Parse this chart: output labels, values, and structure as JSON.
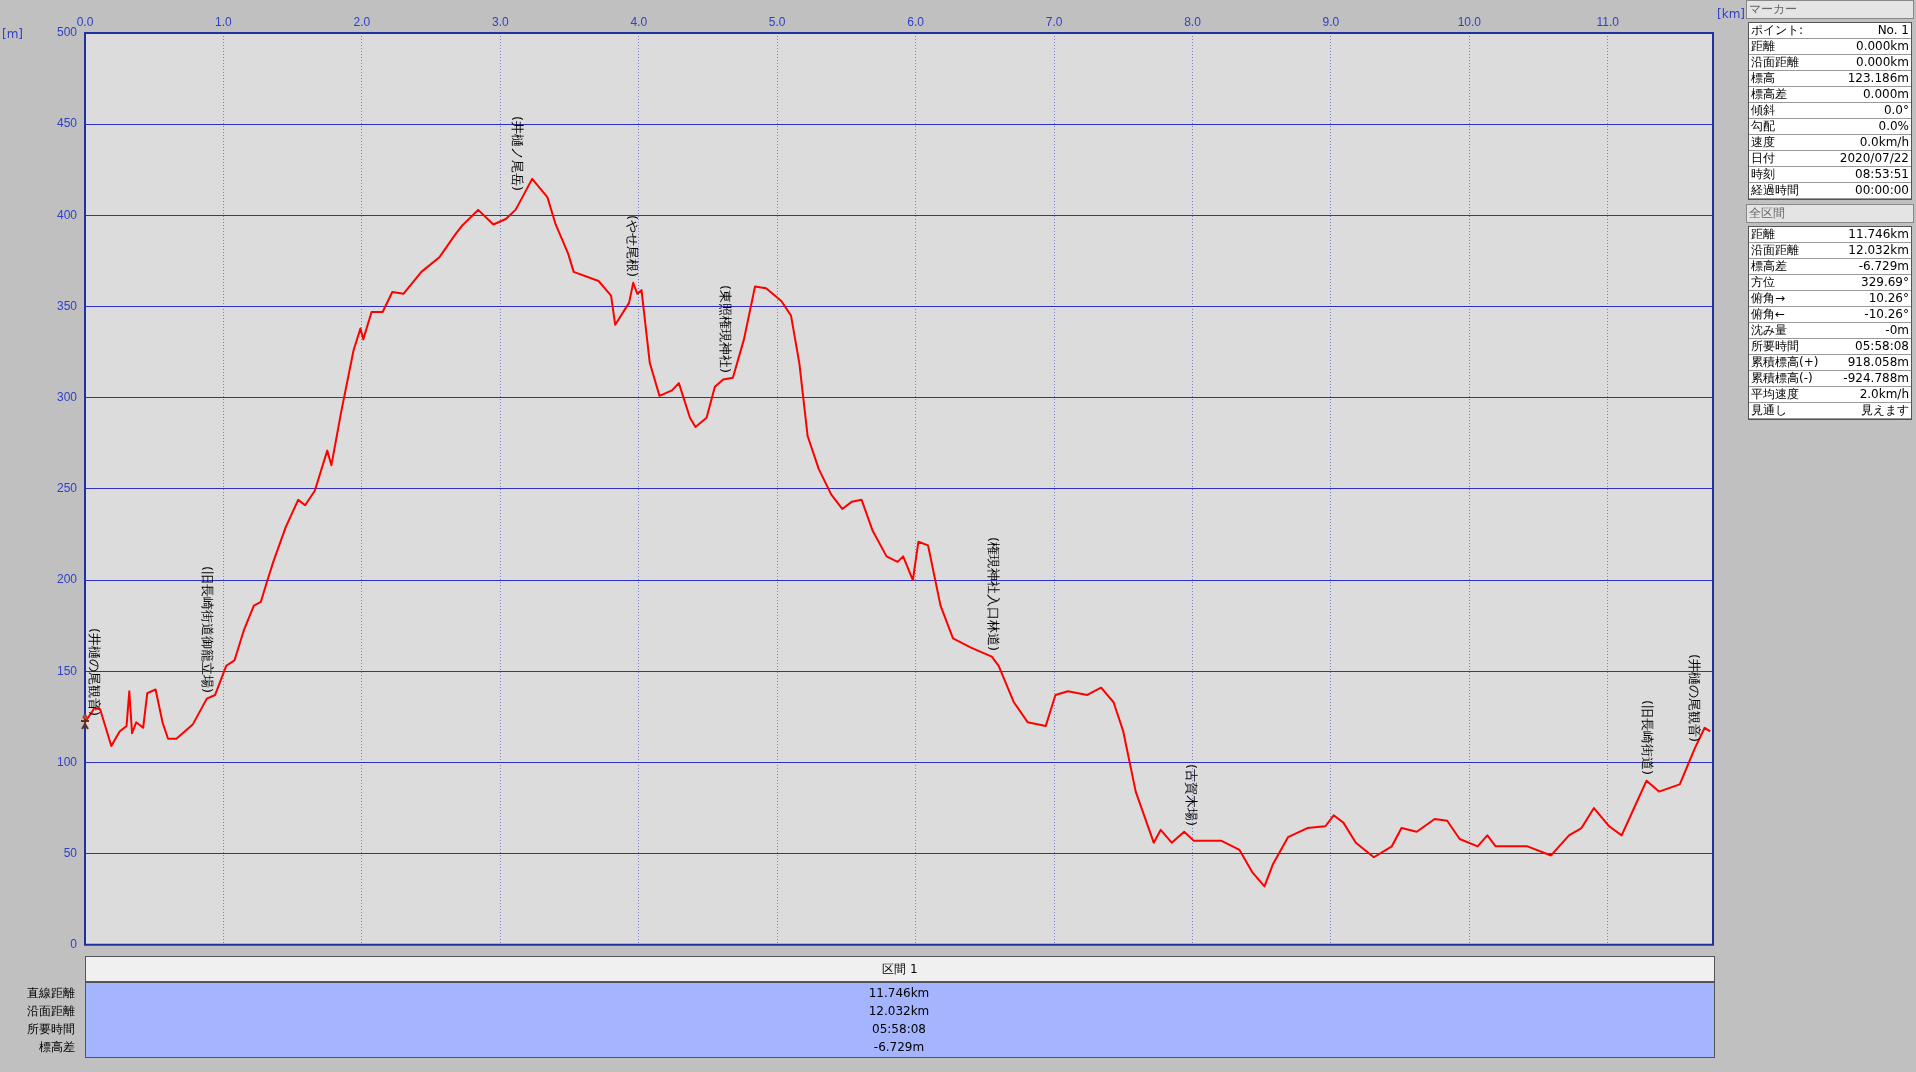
{
  "chart_data": {
    "type": "line",
    "xlabel": "[km]",
    "ylabel": "[m]",
    "color": "#ff0000",
    "marker": "none",
    "grid": true,
    "legend": false,
    "x": [
      0,
      0.07,
      0.11,
      0.19,
      0.25,
      0.3,
      0.32,
      0.34,
      0.37,
      0.42,
      0.45,
      0.51,
      0.56,
      0.6,
      0.66,
      0.78,
      0.88,
      0.94,
      1.02,
      1.08,
      1.15,
      1.22,
      1.27,
      1.31,
      1.36,
      1.45,
      1.54,
      1.59,
      1.66,
      1.75,
      1.78,
      1.85,
      1.94,
      1.99,
      2.01,
      2.07,
      2.15,
      2.22,
      2.3,
      2.43,
      2.56,
      2.67,
      2.72,
      2.84,
      2.95,
      3.04,
      3.11,
      3.16,
      3.23,
      3.34,
      3.4,
      3.49,
      3.53,
      3.71,
      3.8,
      3.83,
      3.93,
      3.96,
      3.99,
      4.02,
      4.08,
      4.15,
      4.24,
      4.29,
      4.37,
      4.41,
      4.49,
      4.55,
      4.61,
      4.68,
      4.76,
      4.84,
      4.92,
      5.03,
      5.1,
      5.16,
      5.22,
      5.3,
      5.39,
      5.47,
      5.54,
      5.61,
      5.69,
      5.79,
      5.87,
      5.91,
      5.98,
      6.02,
      6.09,
      6.18,
      6.27,
      6.4,
      6.55,
      6.6,
      6.71,
      6.81,
      6.94,
      7.01,
      7.1,
      7.24,
      7.34,
      7.43,
      7.5,
      7.59,
      7.72,
      7.77,
      7.85,
      7.94,
      8.01,
      8.21,
      8.34,
      8.43,
      8.52,
      8.58,
      8.69,
      8.83,
      8.96,
      9.02,
      9.09,
      9.18,
      9.31,
      9.44,
      9.51,
      9.62,
      9.75,
      9.84,
      9.93,
      10.06,
      10.13,
      10.19,
      10.42,
      10.59,
      10.72,
      10.81,
      10.9,
      11.01,
      11.1,
      11.19,
      11.28,
      11.37,
      11.52,
      11.63,
      11.7,
      11.74
    ],
    "values": [
      122,
      130,
      129,
      109,
      117,
      120,
      139,
      116,
      122,
      119,
      138,
      140,
      122,
      113,
      113,
      121,
      135,
      137,
      153,
      156,
      173,
      186,
      188,
      198,
      210,
      229,
      244,
      241,
      249,
      271,
      263,
      292,
      326,
      338,
      332,
      347,
      347,
      358,
      357,
      369,
      377,
      389,
      394,
      403,
      395,
      398,
      403,
      410,
      420,
      410,
      395,
      379,
      369,
      364,
      356,
      340,
      352,
      363,
      357,
      359,
      319,
      301,
      304,
      308,
      289,
      284,
      289,
      306,
      310,
      311,
      332,
      361,
      360,
      353,
      345,
      319,
      279,
      261,
      247,
      239,
      243,
      244,
      227,
      213,
      210,
      213,
      200,
      221,
      219,
      186,
      168,
      163,
      158,
      153,
      133,
      122,
      120,
      137,
      139,
      137,
      141,
      133,
      117,
      84,
      56,
      63,
      56,
      62,
      57,
      57,
      52,
      40,
      32,
      44,
      59,
      64,
      65,
      71,
      67,
      56,
      48,
      54,
      64,
      62,
      69,
      68,
      58,
      54,
      60,
      54,
      54,
      49,
      60,
      64,
      75,
      65,
      60,
      75,
      90,
      84,
      88,
      108,
      119,
      117
    ],
    "xlim": [
      0,
      11.76
    ],
    "xticks": [
      {
        "value": 0,
        "label": "0.0"
      },
      {
        "value": 1,
        "label": "1.0"
      },
      {
        "value": 2,
        "label": "2.0"
      },
      {
        "value": 3,
        "label": "3.0"
      },
      {
        "value": 4,
        "label": "4.0"
      },
      {
        "value": 5,
        "label": "5.0"
      },
      {
        "value": 6,
        "label": "6.0"
      },
      {
        "value": 7,
        "label": "7.0"
      },
      {
        "value": 8,
        "label": "8.0"
      },
      {
        "value": 9,
        "label": "9.0"
      },
      {
        "value": 10,
        "label": "10.0"
      },
      {
        "value": 11,
        "label": "11.0"
      }
    ],
    "ylim": [
      0,
      500
    ],
    "yticks": [
      0,
      50,
      100,
      150,
      200,
      250,
      300,
      350,
      400,
      450,
      500
    ],
    "annotations": [
      {
        "text": "(井樋の尾観音)",
        "x": 0,
        "y": 122
      },
      {
        "text": "(旧長崎街道御籠立場)",
        "x": 0.88,
        "y": 135
      },
      {
        "text": "(井樋ノ尾岳)",
        "x": 3.12,
        "y": 410
      },
      {
        "text": "(やせ尾根)",
        "x": 3.95,
        "y": 363
      },
      {
        "text": "(東照権現神社)",
        "x": 4.62,
        "y": 310
      },
      {
        "text": "(権現神社入口林道)",
        "x": 6.56,
        "y": 158
      },
      {
        "text": "(古賀木場)",
        "x": 7.99,
        "y": 62
      },
      {
        "text": "(旧長崎街道)",
        "x": 11.28,
        "y": 90
      },
      {
        "text": "(井樋の尾観音)",
        "x": 11.62,
        "y": 108
      },
      "マーカー",
      "ポイント:",
      "No. 1",
      "距離",
      "0.000km",
      "沿面距離",
      "0.000km",
      "標高",
      "123.186m",
      "標高差",
      "0.000m",
      "傾斜",
      "0.0°",
      "勾配",
      "0.0%",
      "速度",
      "0.0km/h",
      "日付",
      "2020/07/22",
      "時刻",
      "08:53:51",
      "経過時間",
      "00:00:00",
      "全区間",
      "距離",
      "11.746km",
      "沿面距離",
      "12.032km",
      "標高差",
      "-6.729m",
      "方位",
      "329.69°",
      "俯角→",
      "10.26°",
      "俯角←",
      "-10.26°",
      "沈み量",
      "-0m",
      "所要時間",
      "05:58:08",
      "累積標高(+)",
      "918.058m",
      "累積標高(-)",
      "-924.788m",
      "平均速度",
      "2.0km/h",
      "見通し",
      "見えます",
      "区間 1",
      "直線距離",
      "沿面距離",
      "所要時間",
      "標高差",
      "11.746km",
      "12.032km",
      "05:58:08",
      "-6.729m"
    ]
  }
}
